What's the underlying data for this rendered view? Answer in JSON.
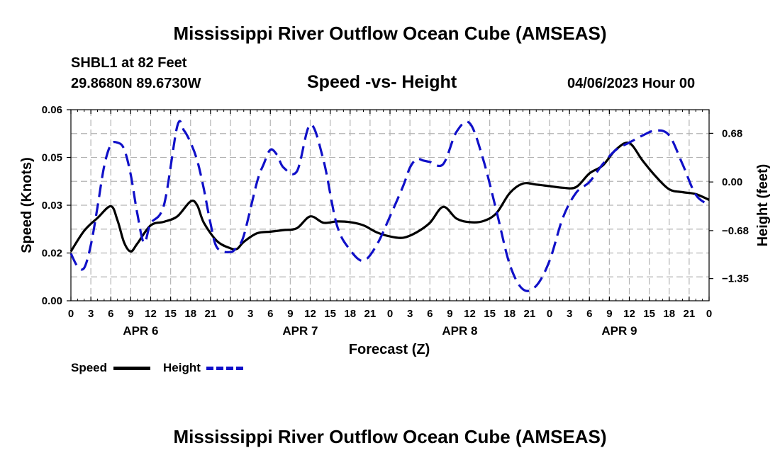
{
  "header": {
    "title": "Mississippi River Outflow Ocean Cube (AMSEAS)",
    "station": "SHBL1 at 82 Feet",
    "coords": "29.8680N  89.6730W",
    "subtitle": "Speed -vs- Height",
    "date": "04/06/2023 Hour 00"
  },
  "footer": {
    "title": "Mississippi River Outflow Ocean Cube (AMSEAS)"
  },
  "legend": {
    "speed_label": "Speed",
    "height_label": "Height",
    "speed_color": "#000000",
    "height_color": "#1010c8"
  },
  "chart_data": {
    "type": "line",
    "title": "Speed -vs- Height",
    "xlabel": "Forecast (Z)",
    "ylabel": "Speed (Knots)",
    "y2label": "Height (feet)",
    "xlim": [
      0,
      96
    ],
    "ylim": [
      0.0,
      0.06
    ],
    "y2lim": [
      -1.66,
      1.01
    ],
    "x_tick_labels": [
      "0",
      "3",
      "6",
      "9",
      "12",
      "15",
      "18",
      "21",
      "0",
      "3",
      "6",
      "9",
      "12",
      "15",
      "18",
      "21",
      "0",
      "3",
      "6",
      "9",
      "12",
      "15",
      "18",
      "21",
      "0",
      "3",
      "6",
      "9",
      "12",
      "15",
      "18",
      "21",
      "0"
    ],
    "y_tick_labels": [
      "0.00",
      "0.02",
      "0.03",
      "0.05",
      "0.06"
    ],
    "y2_tick_labels": [
      "0.68",
      "0.00",
      "−0.68",
      "−1.35"
    ],
    "y2_tick_values": [
      0.68,
      0.0,
      -0.68,
      -1.35
    ],
    "day_labels": [
      "APR 6",
      "APR 7",
      "APR 8",
      "APR 9"
    ],
    "grid": true,
    "series": [
      {
        "name": "Speed",
        "axis": "left",
        "style": "solid",
        "x": [
          0,
          2,
          4,
          6,
          7,
          8,
          9,
          10,
          12,
          14,
          16,
          18,
          19,
          20,
          22,
          24,
          25,
          26,
          28,
          30,
          32,
          34,
          36,
          38,
          40,
          42,
          44,
          46,
          48,
          50,
          52,
          54,
          56,
          58,
          60,
          62,
          64,
          66,
          68,
          70,
          72,
          74,
          76,
          78,
          80,
          82,
          84,
          86,
          88,
          90,
          92,
          94,
          96
        ],
        "y": [
          0.0155,
          0.022,
          0.026,
          0.0297,
          0.0253,
          0.0183,
          0.0155,
          0.018,
          0.0237,
          0.0248,
          0.0265,
          0.0312,
          0.03,
          0.0245,
          0.0187,
          0.0165,
          0.0163,
          0.0185,
          0.0212,
          0.0217,
          0.0222,
          0.0228,
          0.0265,
          0.0245,
          0.0249,
          0.0247,
          0.0237,
          0.0215,
          0.0202,
          0.0198,
          0.0215,
          0.0245,
          0.0295,
          0.0258,
          0.0247,
          0.025,
          0.0275,
          0.0338,
          0.0368,
          0.0365,
          0.036,
          0.0355,
          0.0357,
          0.04,
          0.0425,
          0.0475,
          0.0495,
          0.044,
          0.039,
          0.035,
          0.0341,
          0.0335,
          0.0317
        ]
      },
      {
        "name": "Height",
        "axis": "right",
        "style": "dashed",
        "x": [
          0,
          1,
          2,
          3,
          4,
          5,
          6,
          7,
          8,
          9,
          10,
          11,
          12,
          14,
          16,
          17,
          18,
          19,
          20,
          21,
          22,
          24,
          25,
          26,
          28,
          29,
          30,
          31,
          32,
          34,
          36,
          38,
          40,
          42,
          44,
          46,
          48,
          50,
          51,
          52,
          53,
          54,
          56,
          58,
          60,
          62,
          64,
          66,
          68,
          70,
          72,
          74,
          76,
          78,
          80,
          82,
          84,
          86,
          88,
          90,
          92,
          94,
          96
        ],
        "y": [
          -1.0,
          -1.18,
          -1.2,
          -0.88,
          -0.35,
          0.22,
          0.52,
          0.55,
          0.46,
          0.1,
          -0.45,
          -0.85,
          -0.58,
          -0.32,
          0.78,
          0.72,
          0.55,
          0.3,
          -0.1,
          -0.58,
          -0.92,
          -0.98,
          -0.9,
          -0.75,
          0.0,
          0.25,
          0.45,
          0.38,
          0.2,
          0.15,
          0.8,
          0.3,
          -0.6,
          -0.95,
          -1.1,
          -0.88,
          -0.48,
          -0.05,
          0.2,
          0.32,
          0.3,
          0.28,
          0.25,
          0.7,
          0.82,
          0.32,
          -0.4,
          -1.15,
          -1.5,
          -1.45,
          -1.1,
          -0.5,
          -0.15,
          0.0,
          0.25,
          0.45,
          0.55,
          0.65,
          0.72,
          0.65,
          0.25,
          -0.18,
          -0.32
        ]
      }
    ]
  }
}
